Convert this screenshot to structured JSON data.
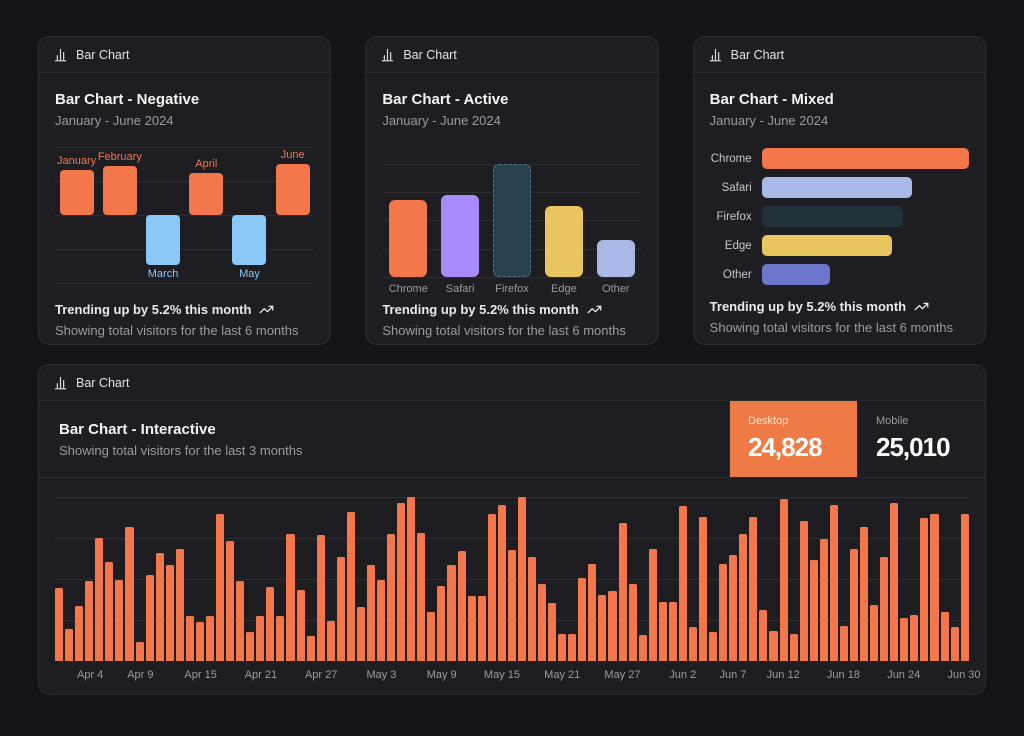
{
  "theme": {
    "page_bg": "#141318",
    "card_bg": "#1e1d21",
    "accent_orange": "#f3774b",
    "desktop_button_orange": "#ee7a45",
    "negative_blue": "#8bc7f7",
    "purple": "#a78bfa",
    "dark_slate": "#27414e",
    "yellow": "#e9c55f",
    "periwinkle": "#aab8e8",
    "indigo": "#6d76ca",
    "muted_text": "#9b9ba1"
  },
  "cards": {
    "negative": {
      "tab": "Bar Chart",
      "title": "Bar Chart - Negative",
      "subtitle": "January - June 2024",
      "trend": "Trending up by 5.2% this month",
      "note": "Showing total visitors for the last 6 months"
    },
    "active": {
      "tab": "Bar Chart",
      "title": "Bar Chart - Active",
      "subtitle": "January - June 2024",
      "trend": "Trending up by 5.2% this month",
      "note": "Showing total visitors for the last 6 months"
    },
    "mixed": {
      "tab": "Bar Chart",
      "title": "Bar Chart - Mixed",
      "subtitle": "January - June 2024",
      "trend": "Trending up by 5.2% this month",
      "note": "Showing total visitors for the last 6 months"
    },
    "interactive": {
      "tab": "Bar Chart",
      "title": "Bar Chart - Interactive",
      "subtitle": "Showing total visitors for the last 3 months",
      "toggles": [
        {
          "label": "Desktop",
          "value": "24,828",
          "active": true
        },
        {
          "label": "Mobile",
          "value": "25,010",
          "active": false
        }
      ]
    }
  },
  "chart_data": [
    {
      "id": "negative",
      "type": "bar",
      "title": "Bar Chart - Negative",
      "subtitle": "January - June 2024",
      "categories": [
        "January",
        "February",
        "March",
        "April",
        "May",
        "June"
      ],
      "values": [
        186,
        205,
        -207,
        173,
        -209,
        214
      ],
      "positive_color": "#f3774b",
      "negative_color": "#8bc7f7",
      "label_placement": "outside-end",
      "grid": true
    },
    {
      "id": "active",
      "type": "bar",
      "title": "Bar Chart - Active",
      "subtitle": "January - June 2024",
      "categories": [
        "Chrome",
        "Safari",
        "Firefox",
        "Edge",
        "Other"
      ],
      "values": [
        187,
        200,
        275,
        173,
        90
      ],
      "colors": [
        "#f3774b",
        "#a78bfa",
        "#27414e",
        "#e9c55f",
        "#aab8e8"
      ],
      "active_bar": "Firefox",
      "grid": true
    },
    {
      "id": "mixed",
      "type": "bar",
      "orientation": "horizontal",
      "title": "Bar Chart - Mixed",
      "subtitle": "January - June 2024",
      "categories": [
        "Chrome",
        "Safari",
        "Firefox",
        "Edge",
        "Other"
      ],
      "values": [
        275,
        200,
        187,
        173,
        90
      ],
      "colors": [
        "#f3774b",
        "#aab8e8",
        "#20313a",
        "#e9c55f",
        "#6d76ca"
      ],
      "grid": false
    },
    {
      "id": "interactive",
      "type": "bar",
      "title": "Bar Chart - Interactive",
      "subtitle": "Showing total visitors for the last 3 months",
      "x_range": [
        "2024-04-01",
        "2024-06-30"
      ],
      "ylim": [
        0,
        520
      ],
      "grid": true,
      "color": "#f3774b",
      "active_series": "Desktop",
      "series": [
        {
          "name": "Desktop",
          "total": 24828,
          "values": [
            222,
            97,
            167,
            242,
            373,
            301,
            245,
            409,
            59,
            261,
            327,
            292,
            342,
            137,
            120,
            138,
            446,
            364,
            243,
            89,
            137,
            224,
            138,
            387,
            215,
            75,
            383,
            122,
            315,
            454,
            165,
            293,
            247,
            385,
            481,
            498,
            388,
            149,
            227,
            293,
            335,
            197,
            197,
            448,
            473,
            338,
            499,
            315,
            235,
            177,
            82,
            81,
            252,
            294,
            201,
            213,
            420,
            233,
            78,
            340,
            178,
            178,
            470,
            103,
            439,
            88,
            294,
            323,
            385,
            438,
            155,
            92,
            492,
            81,
            426,
            307,
            371,
            475,
            107,
            341,
            408,
            169,
            317,
            480,
            132,
            141,
            434,
            448,
            149,
            103,
            446
          ]
        },
        {
          "name": "Mobile",
          "total": 25010
        }
      ],
      "x_ticks": [
        {
          "label": "Apr 4",
          "index": 3
        },
        {
          "label": "Apr 9",
          "index": 8
        },
        {
          "label": "Apr 15",
          "index": 14
        },
        {
          "label": "Apr 21",
          "index": 20
        },
        {
          "label": "Apr 27",
          "index": 26
        },
        {
          "label": "May 3",
          "index": 32
        },
        {
          "label": "May 9",
          "index": 38
        },
        {
          "label": "May 15",
          "index": 44
        },
        {
          "label": "May 21",
          "index": 50
        },
        {
          "label": "May 27",
          "index": 56
        },
        {
          "label": "Jun 2",
          "index": 62
        },
        {
          "label": "Jun 7",
          "index": 67
        },
        {
          "label": "Jun 12",
          "index": 72
        },
        {
          "label": "Jun 18",
          "index": 78
        },
        {
          "label": "Jun 24",
          "index": 84
        },
        {
          "label": "Jun 30",
          "index": 90
        }
      ]
    }
  ]
}
